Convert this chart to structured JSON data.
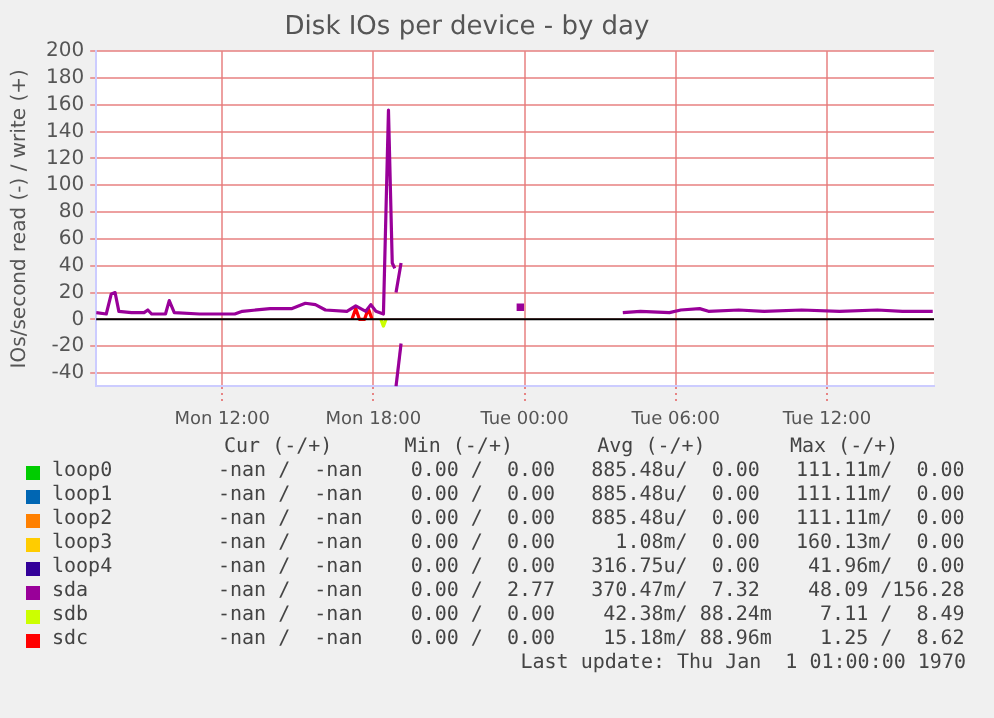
{
  "chart_data": {
    "type": "line",
    "title": "Disk IOs per device - by day",
    "ylabel": "IOs/second read (-) / write (+)",
    "xlim": [
      "1970-01-05T07:00",
      "1970-01-06T16:15"
    ],
    "xticks": [
      {
        "value": "1970-01-05T12:00",
        "label": "Mon 12:00"
      },
      {
        "value": "1970-01-05T18:00",
        "label": "Mon 18:00"
      },
      {
        "value": "1970-01-06T00:00",
        "label": "Tue 00:00"
      },
      {
        "value": "1970-01-06T06:00",
        "label": "Tue 06:00"
      },
      {
        "value": "1970-01-06T12:00",
        "label": "Tue 12:00"
      }
    ],
    "ylim": [
      -50,
      200
    ],
    "yticks": [
      -40,
      -20,
      0,
      20,
      40,
      60,
      80,
      100,
      120,
      140,
      160,
      180,
      200
    ],
    "grid": true,
    "legend": "bottom left",
    "ref_lines": [
      {
        "axis": "y",
        "value": 0,
        "color": "#000000"
      }
    ],
    "series": [
      {
        "name": "loop0",
        "color": "#00cc00"
      },
      {
        "name": "loop1",
        "color": "#0066b3"
      },
      {
        "name": "loop2",
        "color": "#ff8000"
      },
      {
        "name": "loop3",
        "color": "#ffcc00"
      },
      {
        "name": "loop4",
        "color": "#330099"
      },
      {
        "name": "sda",
        "color": "#990099",
        "x": [
          "1970-01-05T07:00",
          "1970-01-05T07:24",
          "1970-01-05T07:36",
          "1970-01-05T07:45",
          "1970-01-05T07:54",
          "1970-01-05T08:24",
          "1970-01-05T08:54",
          "1970-01-05T09:03",
          "1970-01-05T09:12",
          "1970-01-05T09:45",
          "1970-01-05T09:54",
          "1970-01-05T10:06",
          "1970-01-05T11:06",
          "1970-01-05T12:30",
          "1970-01-05T12:48",
          "1970-01-05T13:54",
          "1970-01-05T14:45",
          "1970-01-05T15:18",
          "1970-01-05T15:42",
          "1970-01-05T16:06",
          "1970-01-05T16:57",
          "1970-01-05T17:18",
          "1970-01-05T17:42",
          "1970-01-05T17:54",
          "1970-01-05T18:06",
          "1970-01-05T18:24",
          "1970-01-05T18:36",
          "1970-01-05T18:45",
          "1970-01-05T18:51",
          "1970-01-05T18:53",
          "1970-01-05T18:54",
          "1970-01-05T19:06",
          "1970-01-05T19:12",
          "1970-01-06T03:54",
          "1970-01-06T04:36",
          "1970-01-06T05:45",
          "1970-01-06T06:12",
          "1970-01-06T06:57",
          "1970-01-06T07:18",
          "1970-01-06T08:30",
          "1970-01-06T09:30",
          "1970-01-06T11:00",
          "1970-01-06T12:30",
          "1970-01-06T14:00",
          "1970-01-06T15:00",
          "1970-01-06T16:12"
        ],
        "values": [
          5,
          4,
          19,
          20,
          6,
          5,
          5,
          7,
          4,
          4,
          14,
          5,
          4,
          4,
          6,
          8,
          8,
          12,
          11,
          7,
          6,
          10,
          6,
          11,
          6,
          4,
          156,
          42,
          38,
          null,
          20,
          42,
          null,
          5,
          6,
          5,
          7,
          8,
          6,
          7,
          6,
          7,
          6,
          7,
          6,
          6
        ]
      },
      {
        "color": "#990099",
        "x": [
          "1970-01-05T18:54",
          "1970-01-05T19:06"
        ],
        "values": [
          -50,
          -18
        ]
      },
      {
        "type": "scatter",
        "marker": "square",
        "color": "#990099",
        "x": [
          "1970-01-05T23:50"
        ],
        "values": [
          9
        ]
      },
      {
        "name": "sdb",
        "color": "#ccff00",
        "x": [
          "1970-01-05T18:18",
          "1970-01-05T18:24",
          "1970-01-05T18:30"
        ],
        "values": [
          0,
          -5,
          0
        ]
      },
      {
        "name": "sdc",
        "color": "#ff0000",
        "x": [
          "1970-01-05T17:09",
          "1970-01-05T17:18",
          "1970-01-05T17:27",
          "1970-01-05T17:39",
          "1970-01-05T17:48",
          "1970-01-05T17:57"
        ],
        "values": [
          0,
          8,
          0,
          0,
          8,
          0
        ]
      }
    ],
    "annotations": [
      "Cur (-/+)      Min (-/+)       Avg (-/+)       Max (-/+)",
      "-nan /  -nan    0.00 /  0.00   885.48u/  0.00   111.11m/  0.00",
      "-nan /  -nan    0.00 /  0.00   885.48u/  0.00   111.11m/  0.00",
      "-nan /  -nan    0.00 /  0.00   885.48u/  0.00   111.11m/  0.00",
      "-nan /  -nan    0.00 /  0.00     1.08m/  0.00   160.13m/  0.00",
      "-nan /  -nan    0.00 /  0.00   316.75u/  0.00    41.96m/  0.00",
      "-nan /  -nan    0.00 /  2.77   370.47m/  7.32    48.09 /156.28",
      "-nan /  -nan    0.00 /  0.00    42.38m/ 88.24m    7.11 /  8.49",
      "-nan /  -nan    0.00 /  0.00    15.18m/ 88.96m    1.25 /  8.62",
      "Last update: Thu Jan  1 01:00:00 1970"
    ]
  }
}
